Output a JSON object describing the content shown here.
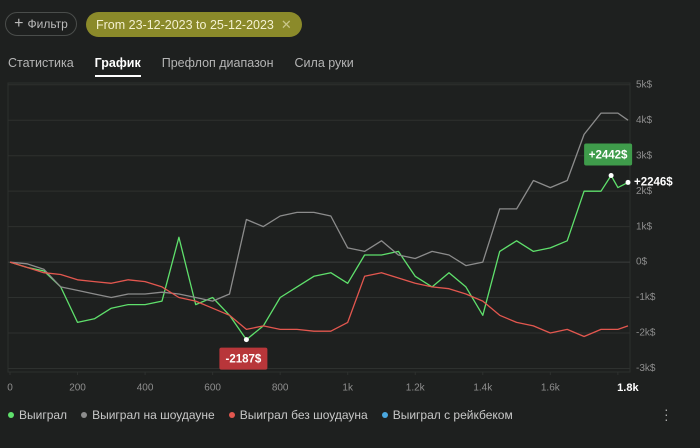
{
  "filter_button": {
    "label": "Фильтр"
  },
  "date_chip": {
    "label": "From 23-12-2023 to 25-12-2023"
  },
  "tabs": [
    {
      "label": "Статистика"
    },
    {
      "label": "График",
      "active": true
    },
    {
      "label": "Префлоп диапазон"
    },
    {
      "label": "Сила руки"
    }
  ],
  "chart_data": {
    "type": "line",
    "x": [
      0,
      50,
      100,
      150,
      200,
      250,
      300,
      350,
      400,
      450,
      500,
      550,
      600,
      650,
      700,
      750,
      800,
      850,
      900,
      950,
      1000,
      1050,
      1100,
      1150,
      1200,
      1250,
      1300,
      1350,
      1400,
      1450,
      1500,
      1550,
      1600,
      1650,
      1700,
      1750,
      1780,
      1800,
      1830
    ],
    "xlim": [
      0,
      1830
    ],
    "xticks": [
      0,
      200,
      400,
      600,
      800,
      {
        "value": 1000,
        "label": "1k"
      },
      {
        "value": 1200,
        "label": "1.2k"
      },
      {
        "value": 1400,
        "label": "1.4k"
      },
      {
        "value": 1600,
        "label": "1.6k"
      },
      {
        "value": 1800,
        "label": "1.8k"
      }
    ],
    "ylim": [
      -3100,
      5050
    ],
    "yticks": [
      {
        "value": 5000,
        "label": "5k$"
      },
      {
        "value": 4000,
        "label": "4k$"
      },
      {
        "value": 3000,
        "label": "3k$"
      },
      {
        "value": 2000,
        "label": "2k$"
      },
      {
        "value": 1000,
        "label": "1k$"
      },
      {
        "value": 0,
        "label": "0$"
      },
      {
        "value": -1000,
        "label": "-1k$"
      },
      {
        "value": -2000,
        "label": "-2k$"
      },
      {
        "value": -3000,
        "label": "-3k$"
      }
    ],
    "grid": true,
    "series": [
      {
        "name": "Выиграл",
        "color": "#5fe06c",
        "values": [
          0,
          -150,
          -250,
          -700,
          -1700,
          -1600,
          -1300,
          -1200,
          -1200,
          -1100,
          700,
          -1200,
          -1000,
          -1500,
          -2187,
          -1800,
          -1000,
          -700,
          -400,
          -300,
          -600,
          200,
          200,
          300,
          -400,
          -700,
          -300,
          -700,
          -1500,
          300,
          600,
          300,
          400,
          600,
          2000,
          2000,
          2442,
          2100,
          2246
        ]
      },
      {
        "name": "Выиграл на шоудауне",
        "color": "#8c8c8c",
        "values": [
          0,
          -50,
          -200,
          -700,
          -800,
          -900,
          -1000,
          -900,
          -900,
          -850,
          -900,
          -1000,
          -1100,
          -900,
          1200,
          1000,
          1300,
          1400,
          1400,
          1300,
          400,
          300,
          600,
          200,
          100,
          300,
          200,
          -100,
          0,
          1500,
          1500,
          2300,
          2100,
          2300,
          3600,
          4200,
          4200,
          4200,
          4000
        ]
      },
      {
        "name": "Выиграл без шоудауна",
        "color": "#e3574f",
        "values": [
          0,
          -150,
          -300,
          -350,
          -500,
          -550,
          -600,
          -500,
          -550,
          -700,
          -1000,
          -1100,
          -1300,
          -1500,
          -1900,
          -1800,
          -1900,
          -1900,
          -1950,
          -1950,
          -1700,
          -400,
          -300,
          -450,
          -600,
          -700,
          -750,
          -900,
          -1100,
          -1500,
          -1700,
          -1800,
          -2000,
          -1900,
          -2100,
          -1900,
          -1900,
          -1900,
          -1800
        ]
      },
      {
        "name": "Выиграл с рейкбеком",
        "color": "#4aa8e0",
        "values": [
          null,
          null,
          null,
          null,
          null,
          null,
          null,
          null,
          null,
          null,
          null,
          null,
          null,
          null,
          null,
          null,
          null,
          null,
          null,
          null,
          null,
          null,
          null,
          null,
          null,
          null,
          null,
          null,
          null,
          null,
          null,
          null,
          null,
          null,
          null,
          null,
          null,
          null,
          null
        ]
      }
    ],
    "annotations": [
      {
        "label": "+2442$",
        "value": 2442,
        "x": 1780,
        "color": "#3f9c4b"
      },
      {
        "label": "-2187$",
        "value": -2187,
        "x": 700,
        "color": "#b8363a"
      },
      {
        "label": "+2246$",
        "value": 2246,
        "x": 1830
      }
    ]
  }
}
